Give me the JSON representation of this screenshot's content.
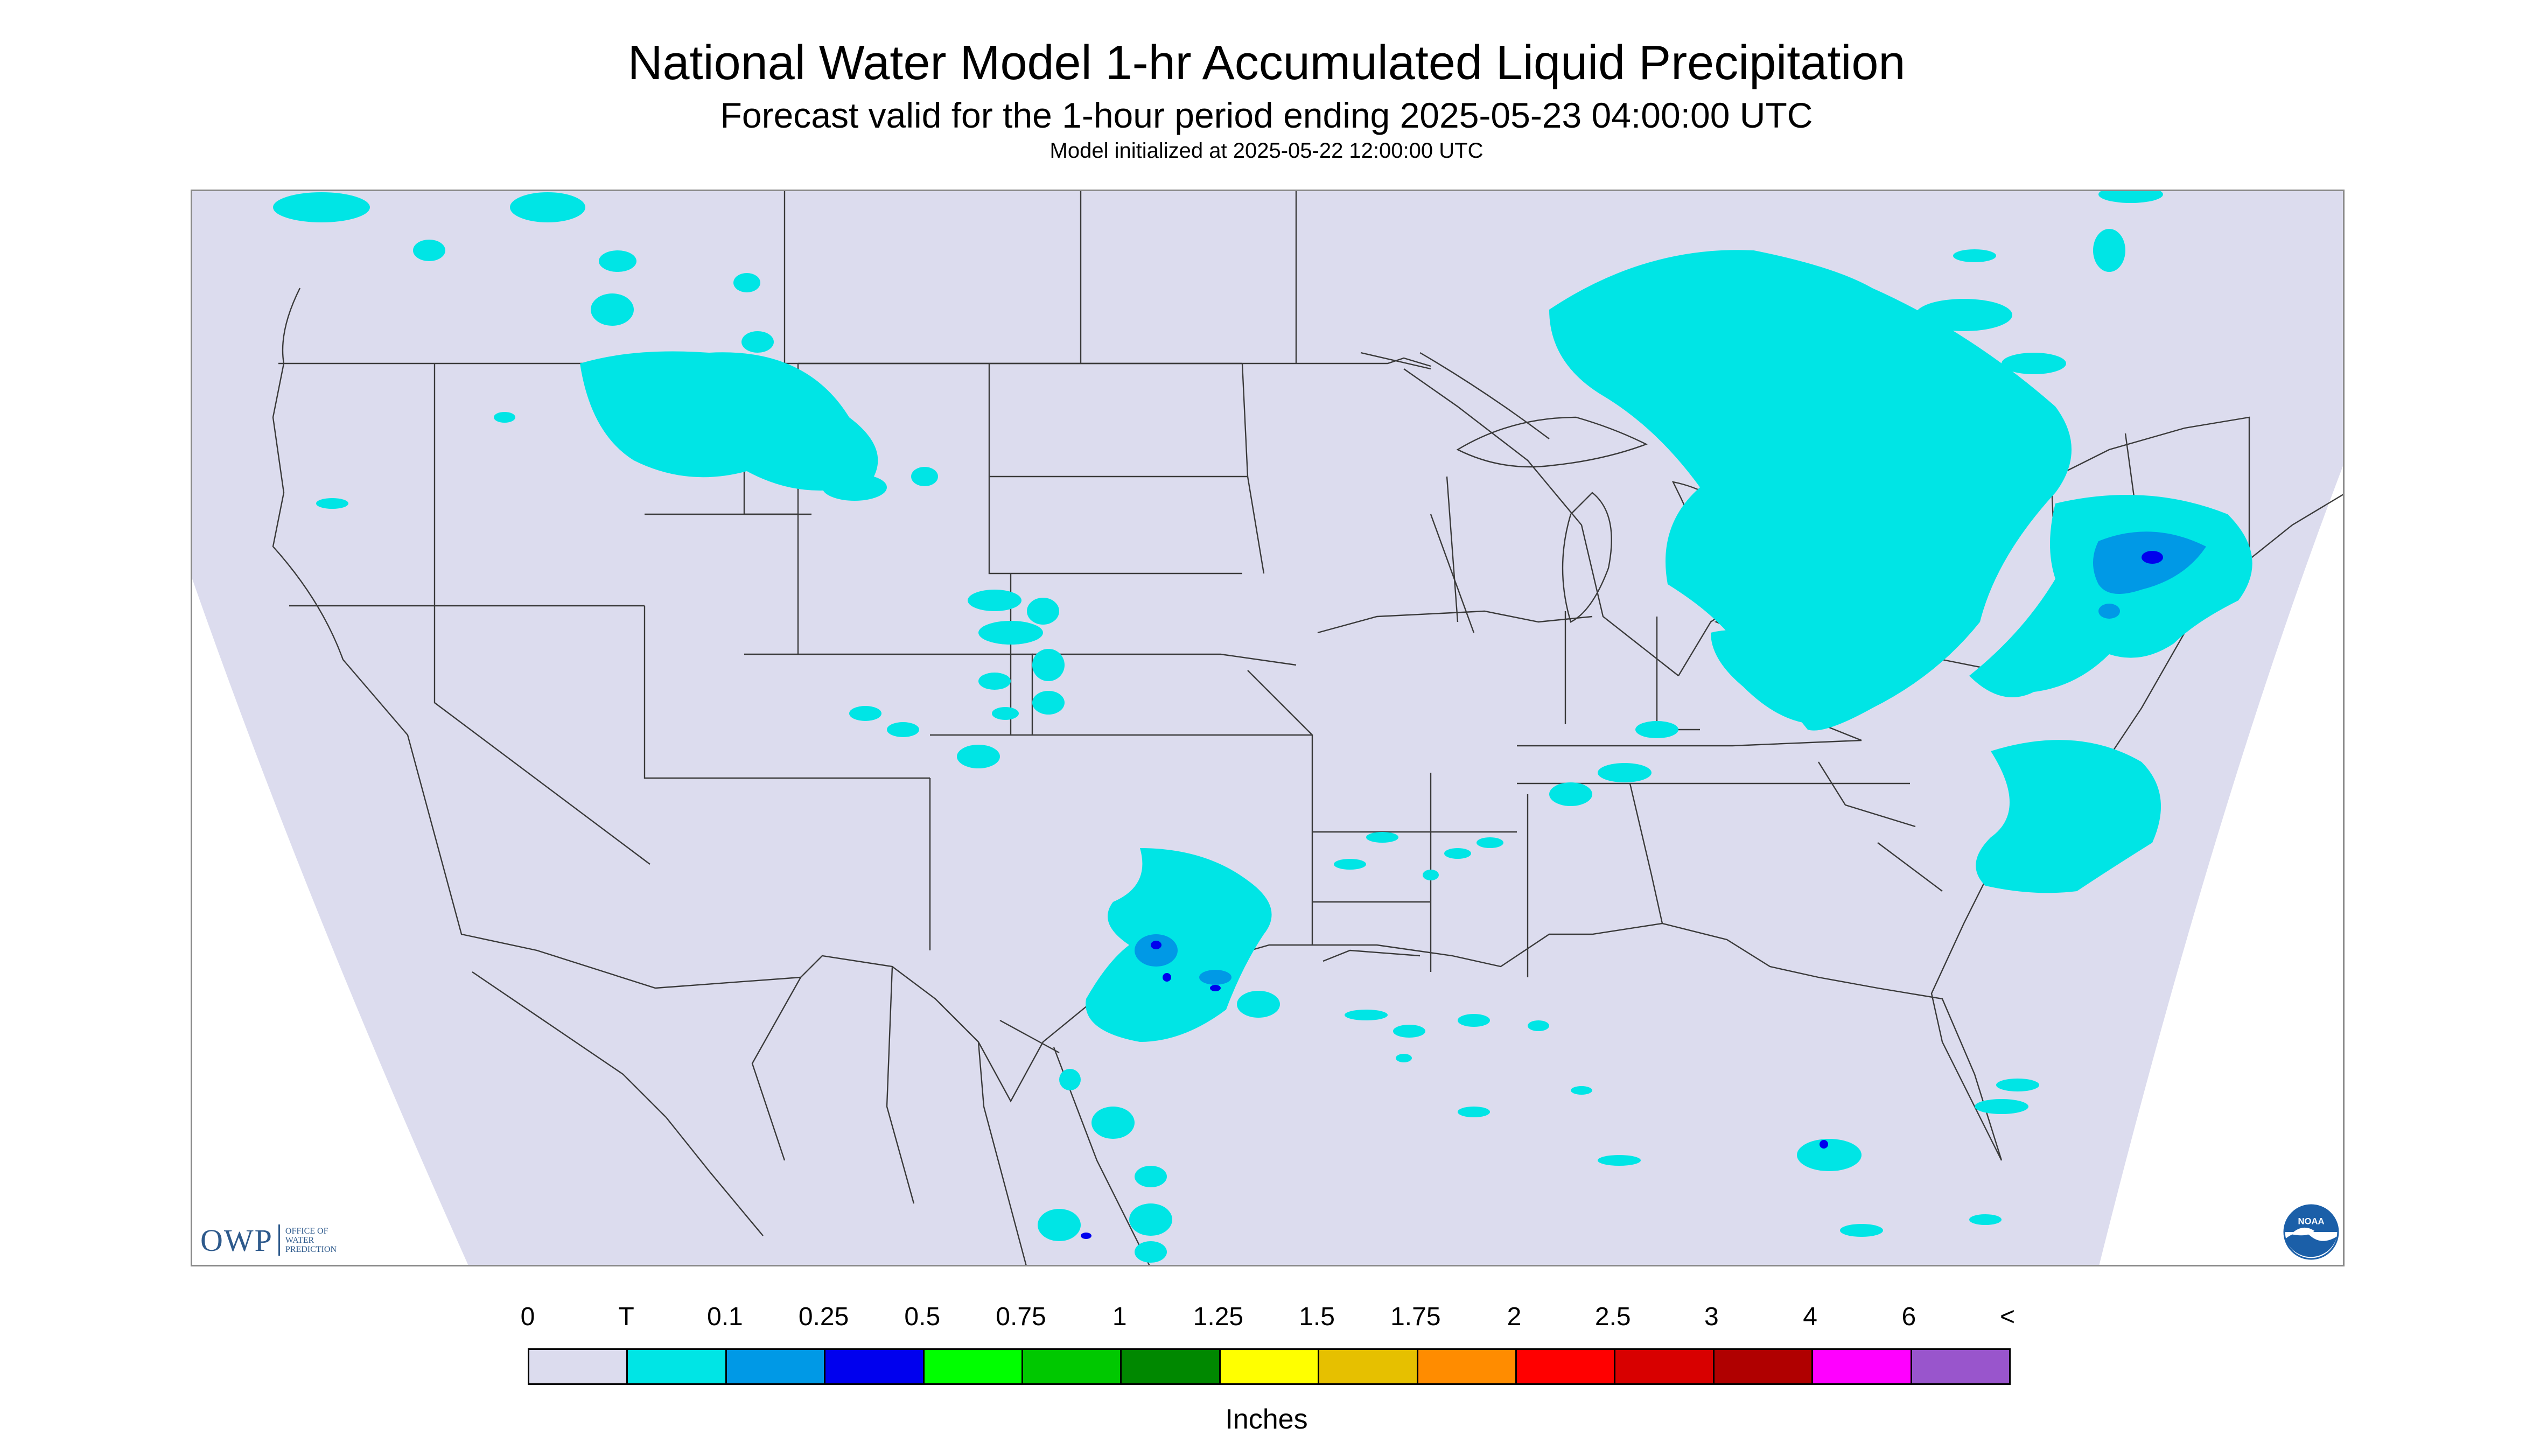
{
  "title": "National Water Model 1-hr Accumulated Liquid Precipitation",
  "subtitle": "Forecast valid for the 1-hour period ending 2025-05-23 04:00:00 UTC",
  "init_line": "Model initialized at 2025-05-22 12:00:00 UTC",
  "colors": {
    "no_data_bg": "#ffffff",
    "domain_fill": "#dcdcee",
    "boundaries": "#3a3a3a",
    "owp_blue": "#2e5a8c",
    "noaa_blue": "#1b5fa8"
  },
  "logos": {
    "owp_short": "OWP",
    "owp_long": "OFFICE OF\nWATER\nPREDICTION",
    "noaa": "NOAA"
  },
  "map": {
    "extent": "Continental United States",
    "precip_areas": [
      {
        "region": "Northern Rockies / Montana",
        "category": "T"
      },
      {
        "region": "Great Lakes / Ontario",
        "category": "T"
      },
      {
        "region": "Northeast / New England",
        "category": "T-0.25"
      },
      {
        "region": "Mid-Atlantic offshore",
        "category": "T"
      },
      {
        "region": "Texas / Oklahoma",
        "category": "T-0.25"
      },
      {
        "region": "Northern Mexico",
        "category": "T-0.25"
      },
      {
        "region": "South Florida",
        "category": "T-0.1"
      },
      {
        "region": "Central Plains",
        "category": "T"
      }
    ]
  },
  "legend": {
    "labels": [
      "0",
      "T",
      "0.1",
      "0.25",
      "0.5",
      "0.75",
      "1",
      "1.25",
      "1.5",
      "1.75",
      "2",
      "2.5",
      "3",
      "4",
      "6",
      "<"
    ],
    "colors": [
      "#dcdcee",
      "#00e5e5",
      "#0099e6",
      "#0000ee",
      "#00ff00",
      "#00c800",
      "#008800",
      "#ffff00",
      "#e6c000",
      "#ff8c00",
      "#ff0000",
      "#d80000",
      "#b00000",
      "#ff00ff",
      "#9955cc"
    ],
    "units": "Inches"
  }
}
